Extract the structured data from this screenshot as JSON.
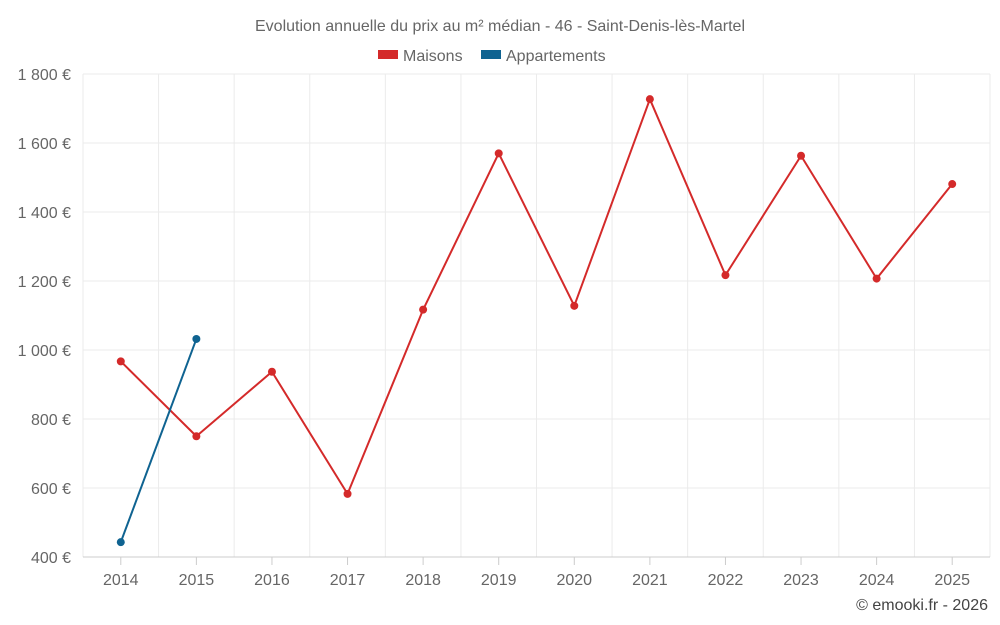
{
  "chart_data": {
    "type": "line",
    "title": "Evolution annuelle du prix au m² médian - 46 - Saint-Denis-lès-Martel",
    "categories": [
      "2014",
      "2015",
      "2016",
      "2017",
      "2018",
      "2019",
      "2020",
      "2021",
      "2022",
      "2023",
      "2024",
      "2025"
    ],
    "ylim": [
      400,
      1800
    ],
    "yticks": [
      400,
      600,
      800,
      1000,
      1200,
      1400,
      1600,
      1800
    ],
    "ytick_labels": [
      "400 €",
      "600 €",
      "800 €",
      "1 000 €",
      "1 200 €",
      "1 400 €",
      "1 600 €",
      "1 800 €"
    ],
    "legend_position": "top-center",
    "grid": true,
    "series": [
      {
        "name": "Maisons",
        "color": "#d42a2a",
        "values": [
          967,
          750,
          937,
          583,
          1117,
          1570,
          1128,
          1727,
          1217,
          1563,
          1207,
          1481
        ]
      },
      {
        "name": "Appartements",
        "color": "#0f6391",
        "values": [
          443,
          1032,
          null,
          null,
          null,
          null,
          null,
          null,
          null,
          null,
          null,
          null
        ]
      }
    ]
  },
  "credit": "© emooki.fr - 2026"
}
